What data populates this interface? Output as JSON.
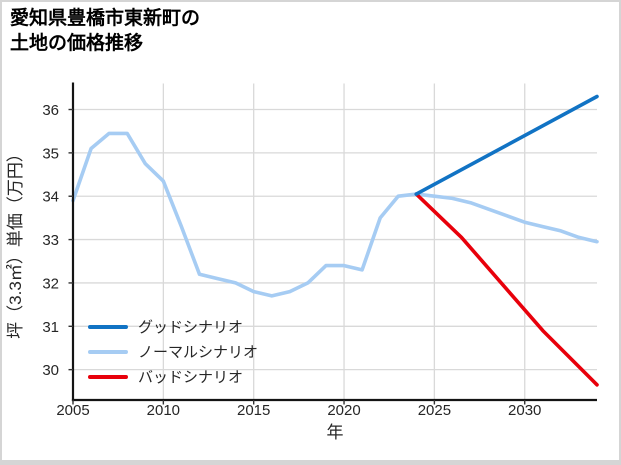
{
  "title": {
    "line1": "愛知県豊橋市東新町の",
    "line2": "土地の価格推移"
  },
  "chart_data": {
    "type": "line",
    "title": "愛知県豊橋市東新町の土地の価格推移",
    "xlabel": "年",
    "ylabel": "坪（3.3㎡）単価（万円）",
    "xlim": [
      2005,
      2034
    ],
    "ylim": [
      29.3,
      36.6
    ],
    "xticks": [
      2005,
      2010,
      2015,
      2020,
      2025,
      2030
    ],
    "yticks": [
      30,
      31,
      32,
      33,
      34,
      35,
      36
    ],
    "grid": true,
    "legend_position": "lower left",
    "legend_items": [
      {
        "label": "グッドシナリオ",
        "color": "#1173c4"
      },
      {
        "label": "ノーマルシナリオ",
        "color": "#a6ccf3"
      },
      {
        "label": "バッドシナリオ",
        "color": "#e8000b"
      }
    ],
    "series": [
      {
        "name": "ノーマルシナリオ",
        "role": "history-and-normal-scenario",
        "color": "#a6ccf3",
        "x": [
          2005,
          2006,
          2007,
          2008,
          2009,
          2010,
          2011,
          2012,
          2013,
          2014,
          2015,
          2016,
          2017,
          2018,
          2019,
          2020,
          2021,
          2022,
          2023,
          2024,
          2025,
          2026,
          2027,
          2028,
          2029,
          2030,
          2031,
          2032,
          2033,
          2034
        ],
        "values": [
          33.9,
          35.1,
          35.45,
          35.45,
          34.75,
          34.35,
          33.3,
          32.2,
          32.1,
          32.0,
          31.8,
          31.7,
          31.8,
          32.0,
          32.4,
          32.4,
          32.3,
          33.5,
          34.0,
          34.05,
          34.0,
          33.95,
          33.85,
          33.7,
          33.55,
          33.4,
          33.3,
          33.2,
          33.05,
          32.95
        ]
      },
      {
        "name": "バッドシナリオ",
        "role": "bad-scenario",
        "color": "#e8000b",
        "x": [
          2024,
          2026.5,
          2031,
          2034
        ],
        "values": [
          34.05,
          33.05,
          30.9,
          29.65
        ]
      },
      {
        "name": "グッドシナリオ",
        "role": "good-scenario",
        "color": "#1173c4",
        "x": [
          2024,
          2034
        ],
        "values": [
          34.05,
          36.3
        ]
      }
    ]
  }
}
